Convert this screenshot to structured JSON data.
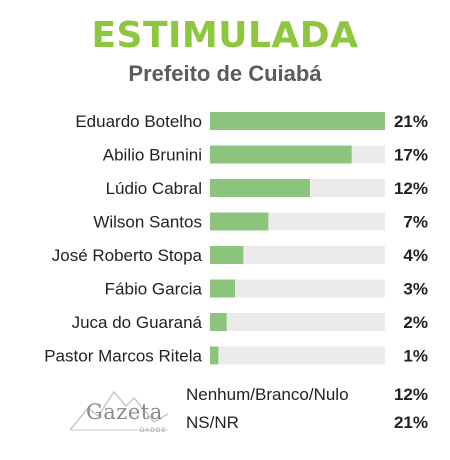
{
  "header": {
    "title": "ESTIMULADA",
    "subtitle": "Prefeito de Cuiabá"
  },
  "chart_data": {
    "type": "bar",
    "orientation": "horizontal",
    "categories": [
      "Eduardo Botelho",
      "Abilio Brunini",
      "Lúdio Cabral",
      "Wilson Santos",
      "José Roberto Stopa",
      "Fábio Garcia",
      "Juca do Guaraná",
      "Pastor Marcos Ritela"
    ],
    "values": [
      21,
      17,
      12,
      7,
      4,
      3,
      2,
      1
    ],
    "value_labels": [
      "21%",
      "17%",
      "12%",
      "7%",
      "4%",
      "3%",
      "2%",
      "1%"
    ],
    "xlim": [
      0,
      21
    ],
    "bar_color": "#8cc47e",
    "track_color": "#ebebeb",
    "grid": false
  },
  "others": [
    {
      "label": "Nenhum/Branco/Nulo",
      "value": "12%"
    },
    {
      "label": "NS/NR",
      "value": "21%"
    }
  ],
  "logo": {
    "name": "Gazeta",
    "tagline": "DADOS"
  },
  "colors": {
    "title": "#8dc63f",
    "subtitle": "#5b5b5b"
  }
}
